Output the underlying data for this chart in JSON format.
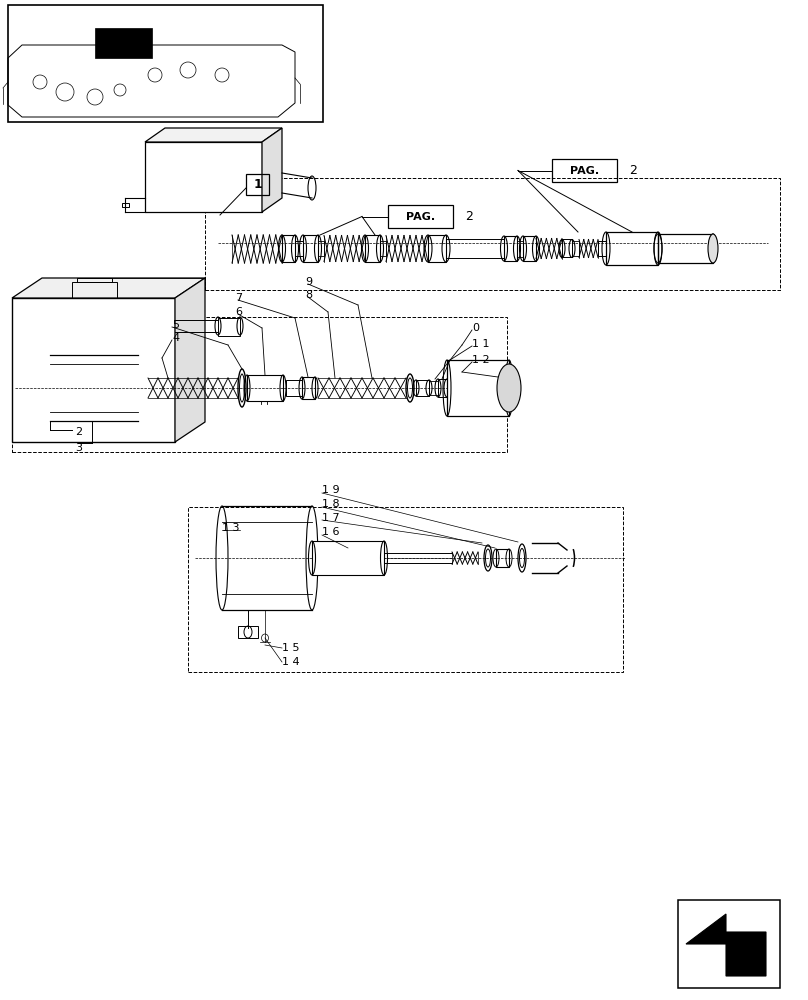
{
  "title": "",
  "bg_color": "#ffffff",
  "line_color": "#000000",
  "fig_width": 8.08,
  "fig_height": 10.0,
  "dpi": 100
}
